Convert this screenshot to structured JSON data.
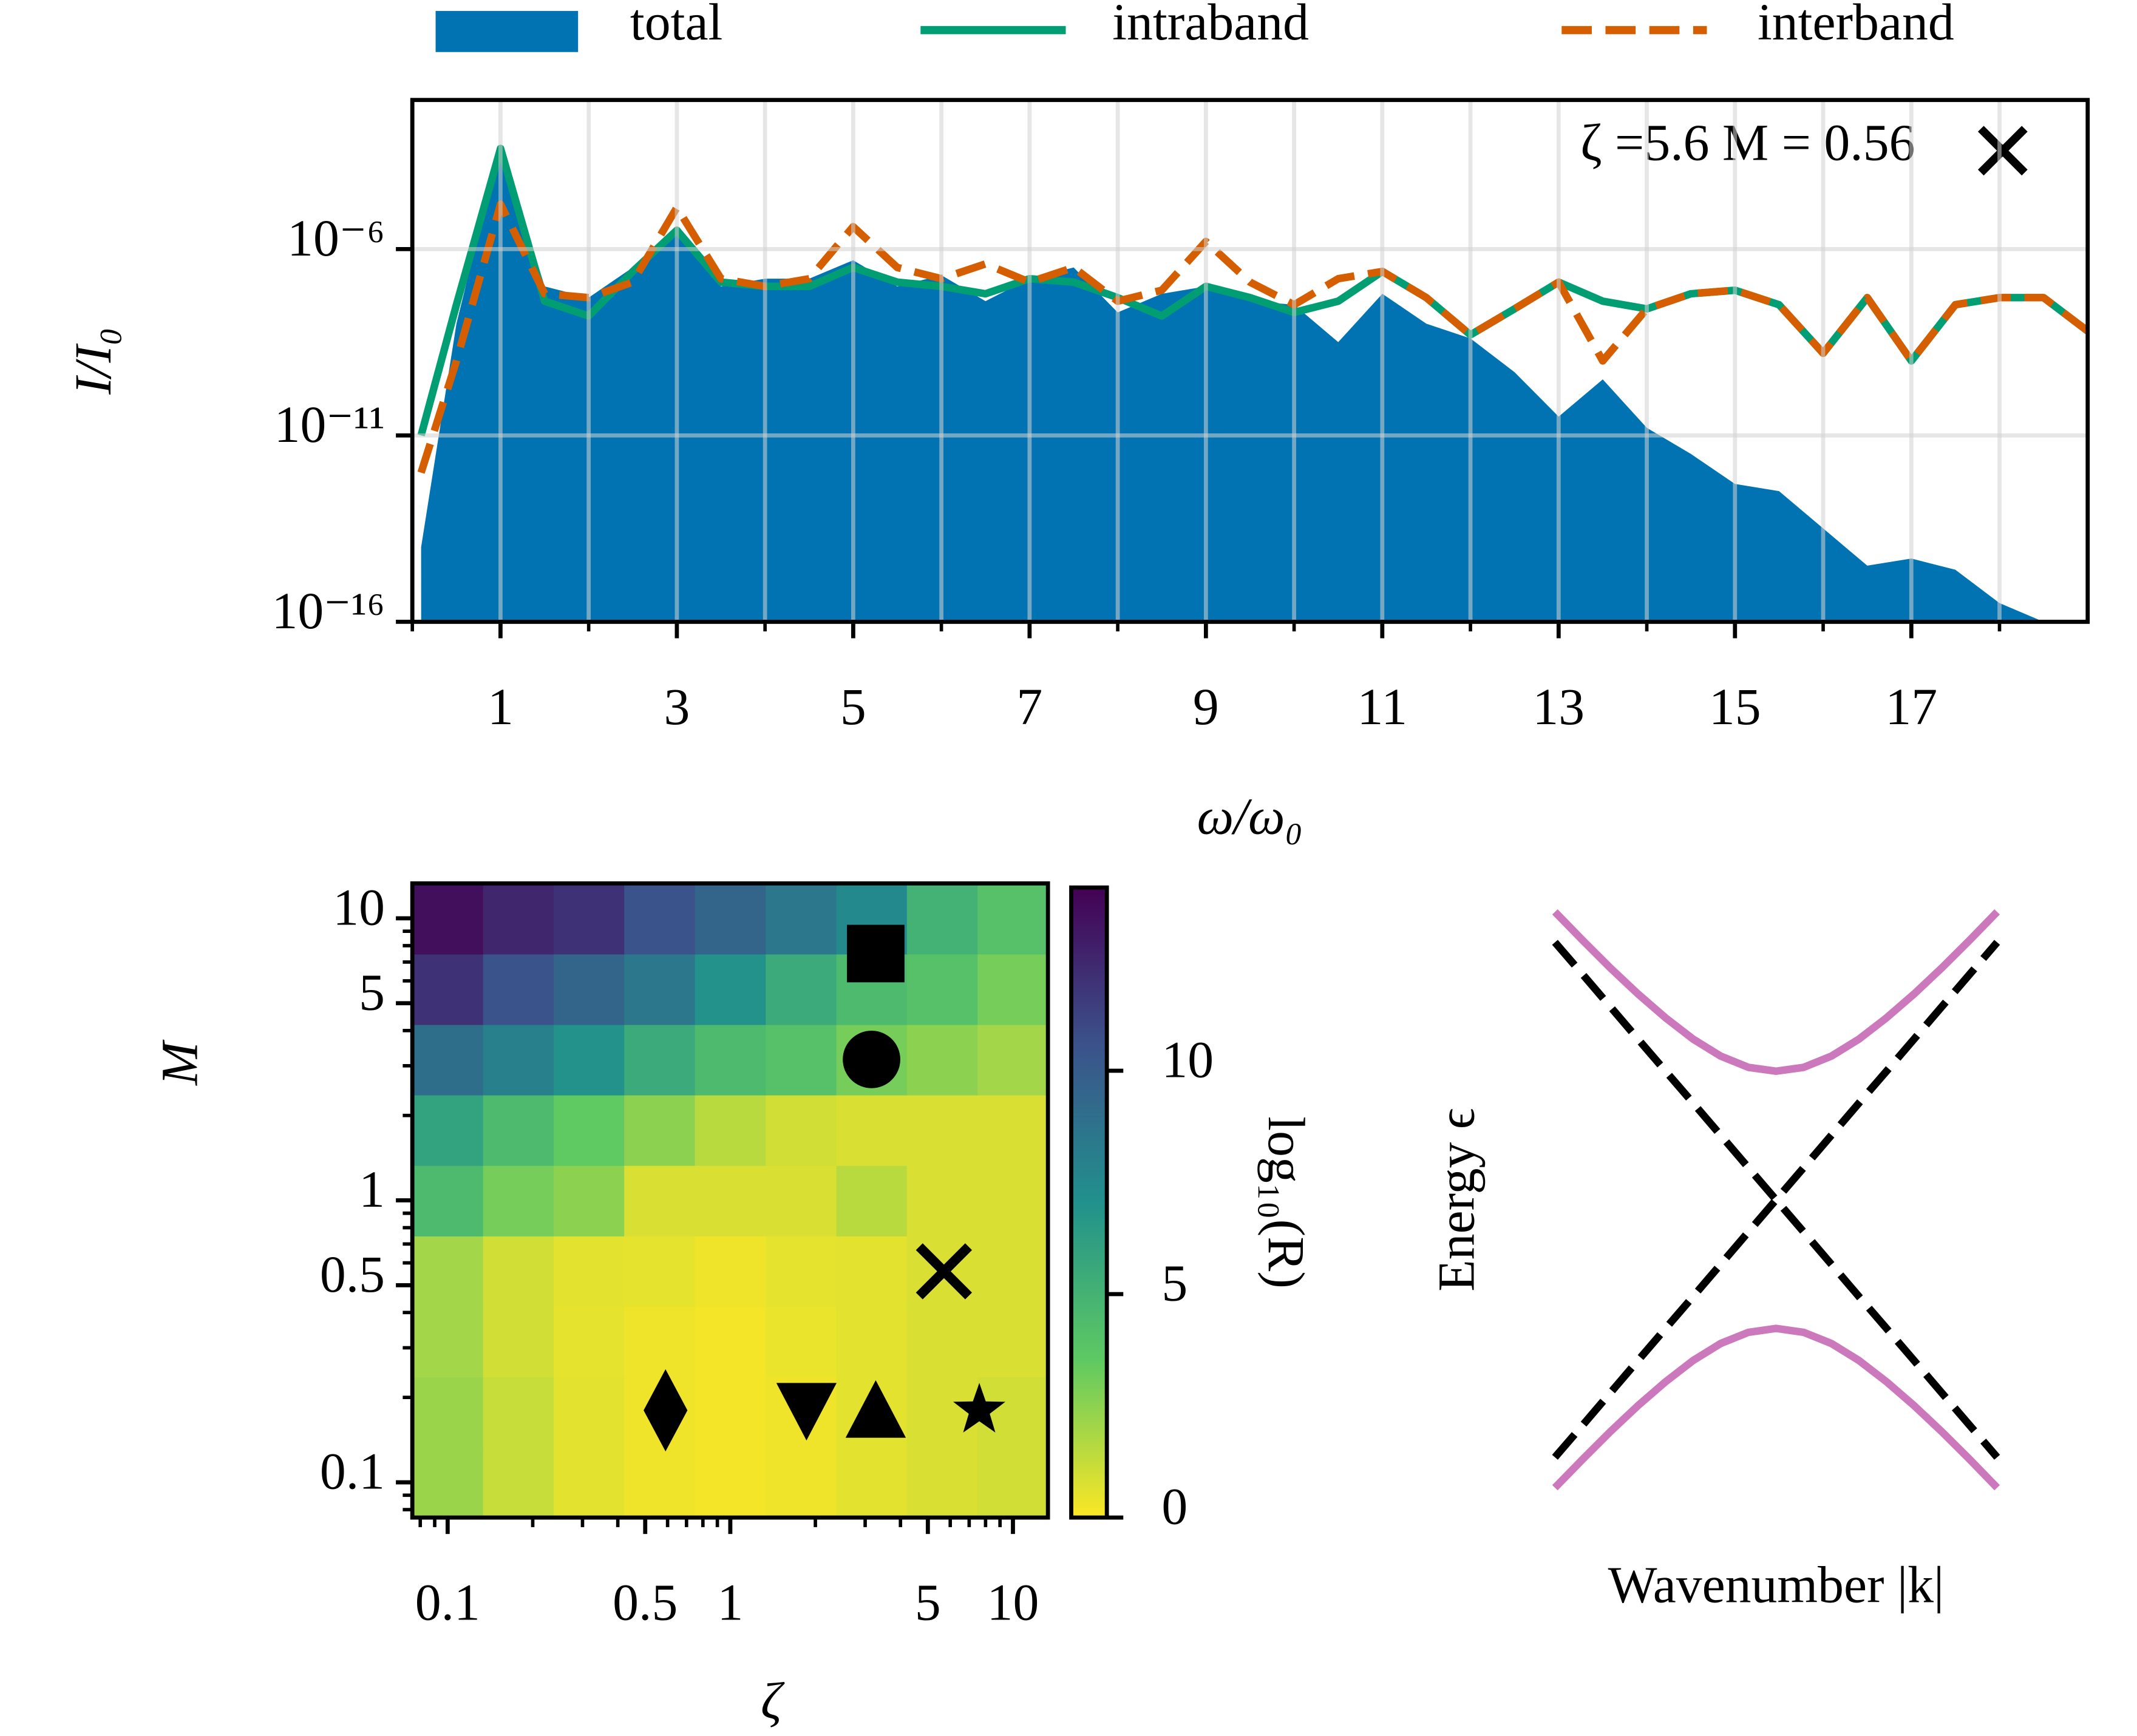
{
  "chart_data": [
    {
      "type": "line",
      "yscale": "log",
      "grid": true,
      "legend": "top",
      "xlabel": "ω/ω₀",
      "ylabel": "I/I₀",
      "annotation": "ζ =5.6 M = 0.56",
      "xlim": [
        0,
        19
      ],
      "ylim": [
        1e-16,
        0.01
      ],
      "xticks": [
        1,
        3,
        5,
        7,
        9,
        11,
        13,
        15,
        17
      ],
      "xminorticks": [
        0,
        2,
        4,
        6,
        8,
        10,
        12,
        14,
        16,
        18
      ],
      "yticks": [
        {
          "value": 1e-06,
          "label": "10⁻⁶"
        },
        {
          "value": 1e-11,
          "label": "10⁻¹¹"
        },
        {
          "value": 1e-16,
          "label": "10⁻¹⁶"
        }
      ],
      "x": [
        0.1,
        0.5,
        1,
        1.5,
        2,
        2.5,
        3,
        3.5,
        4,
        4.5,
        5,
        5.5,
        6,
        6.5,
        7,
        7.5,
        8,
        8.5,
        9,
        9.5,
        10,
        10.5,
        11,
        11.5,
        12,
        12.5,
        13,
        13.5,
        14,
        14.5,
        15,
        15.5,
        16,
        16.5,
        17,
        17.5,
        18,
        18.5,
        19
      ],
      "series": [
        {
          "name": "total",
          "color": "#0173b2",
          "fill": true,
          "values": [
            1e-14,
            1e-08,
            0.00063,
            1e-07,
            5e-08,
            3.2e-07,
            3.2e-06,
            1e-07,
            1.6e-07,
            1.6e-07,
            5e-07,
            1e-07,
            2e-07,
            4e-08,
            1.6e-07,
            3.2e-07,
            2e-08,
            6.3e-08,
            1e-07,
            4e-08,
            3.2e-08,
            3.2e-09,
            6.3e-08,
            1e-08,
            4e-09,
            5e-10,
            3.2e-11,
            3.2e-10,
            1.6e-11,
            3.2e-12,
            5e-13,
            3.2e-13,
            3.2e-14,
            3.2e-15,
            5e-15,
            2.5e-15,
            3.2e-16,
            1e-16,
            1e-16
          ]
        },
        {
          "name": "intraband",
          "color": "#029e73",
          "values": [
            1e-11,
            3.2e-08,
            0.0005,
            4e-08,
            1.6e-08,
            2.5e-07,
            3.2e-06,
            1.3e-07,
            1e-07,
            1e-07,
            3.2e-07,
            1.3e-07,
            1e-07,
            6.3e-08,
            1.6e-07,
            1.3e-07,
            5e-08,
            1.6e-08,
            1e-07,
            5e-08,
            2e-08,
            4e-08,
            2.5e-07,
            5e-08,
            5e-09,
            2.5e-08,
            1.3e-07,
            4e-08,
            2.5e-08,
            6.3e-08,
            7.9e-08,
            3.2e-08,
            1.6e-09,
            5e-08,
            1e-09,
            3.2e-08,
            5e-08,
            5e-08,
            6.3e-09
          ]
        },
        {
          "name": "interband",
          "color": "#d55e00",
          "dash": true,
          "values": [
            1e-12,
            1e-09,
            1.6e-05,
            6.3e-08,
            5e-08,
            1.3e-07,
            1.3e-05,
            1.6e-07,
            1e-07,
            1.6e-07,
            4e-06,
            3.2e-07,
            1.6e-07,
            4e-07,
            1.3e-07,
            3.2e-07,
            4e-08,
            7.9e-08,
            1.6e-06,
            1.3e-07,
            3.2e-08,
            1.6e-07,
            2.5e-07,
            5e-08,
            5e-09,
            2.5e-08,
            1.3e-07,
            1e-09,
            2.5e-08,
            6.3e-08,
            7.9e-08,
            3.2e-08,
            1.6e-09,
            5e-08,
            1e-09,
            3.2e-08,
            5e-08,
            5e-08,
            6.3e-09
          ]
        }
      ]
    },
    {
      "type": "heatmap",
      "xscale": "log",
      "yscale": "log",
      "cmap": "viridis_r",
      "xlabel": "ζ",
      "ylabel": "M",
      "xlim": [
        0.075,
        13.3
      ],
      "ylim": [
        0.075,
        13.3
      ],
      "xticks": [
        0.1,
        0.5,
        1,
        5,
        10
      ],
      "yticks": [
        0.1,
        0.5,
        1,
        5,
        10
      ],
      "xminorticks": [
        0.08,
        0.09,
        0.2,
        0.3,
        0.4,
        0.6,
        0.7,
        0.8,
        0.9,
        2,
        3,
        4,
        6,
        7,
        8,
        9
      ],
      "yminorticks": [
        0.08,
        0.09,
        0.2,
        0.3,
        0.4,
        0.6,
        0.7,
        0.8,
        0.9,
        2,
        3,
        4,
        6,
        7,
        8,
        9
      ],
      "x": [
        0.1,
        0.178,
        0.316,
        0.562,
        1,
        1.78,
        3.16,
        5.62,
        10
      ],
      "y": [
        0.1,
        0.178,
        0.316,
        0.562,
        1,
        1.78,
        3.16,
        5.62,
        10
      ],
      "z": [
        [
          2.2,
          1.2,
          0.6,
          0.3,
          0.2,
          0.3,
          0.6,
          0.8,
          1
        ],
        [
          2.2,
          1.2,
          0.6,
          0.3,
          0.2,
          0.3,
          0.6,
          0.8,
          1
        ],
        [
          2,
          1,
          0.5,
          0.3,
          0.2,
          0.4,
          0.6,
          0.8,
          0.8
        ],
        [
          2,
          1,
          0.6,
          0.5,
          0.3,
          0.5,
          0.6,
          0.8,
          0.8
        ],
        [
          4.5,
          3,
          2.5,
          0.8,
          0.8,
          0.8,
          1.5,
          0.8,
          0.8
        ],
        [
          6,
          4.5,
          3.5,
          2.5,
          1.5,
          1,
          0.8,
          0.8,
          0.8
        ],
        [
          9,
          8,
          7,
          5.5,
          4.5,
          4,
          3,
          2.5,
          2
        ],
        [
          12,
          10.5,
          9.5,
          8.5,
          7,
          5.5,
          4.5,
          4,
          3
        ],
        [
          13.5,
          12.5,
          12,
          10.5,
          9.5,
          8.5,
          7.5,
          5,
          4
        ]
      ],
      "colorbar": {
        "label": "log₁₀(R)",
        "lim": [
          0,
          14.1
        ],
        "ticks": [
          0,
          5,
          10
        ]
      },
      "points": {
        "x": [
          3.27,
          3.16,
          5.7,
          0.59,
          1.86,
          3.27,
          7.6
        ],
        "y": [
          7.5,
          3.16,
          0.56,
          0.18,
          0.18,
          0.18,
          0.18
        ],
        "markers": [
          "square",
          "circle",
          "x",
          "diamond",
          "triangle-down",
          "triangle-up",
          "star"
        ],
        "color": "#000000"
      }
    },
    {
      "type": "line",
      "frame": false,
      "xlabel": "Wavenumber |k|",
      "ylabel": "Energy ϵ",
      "xlim": [
        -1.05,
        1.05
      ],
      "ylim": [
        -1.4,
        1.4
      ],
      "x": [
        -1,
        -0.875,
        -0.75,
        -0.625,
        -0.5,
        -0.375,
        -0.25,
        -0.125,
        0,
        0.125,
        0.25,
        0.375,
        0.5,
        0.625,
        0.75,
        0.875,
        1
      ],
      "series": [
        {
          "color": "#cc78bc",
          "values": [
            1.308,
            1.179,
            1.054,
            0.936,
            0.827,
            0.73,
            0.653,
            0.602,
            0.584,
            0.602,
            0.653,
            0.73,
            0.827,
            0.936,
            1.054,
            1.179,
            1.308
          ]
        },
        {
          "color": "#cc78bc",
          "values": [
            -1.308,
            -1.179,
            -1.054,
            -0.936,
            -0.827,
            -0.73,
            -0.653,
            -0.602,
            -0.584,
            -0.602,
            -0.653,
            -0.73,
            -0.827,
            -0.936,
            -1.054,
            -1.179,
            -1.308
          ]
        },
        {
          "color": "#000000",
          "dash": true,
          "values": [
            1.17,
            1.024,
            0.878,
            0.731,
            0.585,
            0.439,
            0.293,
            0.146,
            0,
            -0.146,
            -0.293,
            -0.439,
            -0.585,
            -0.731,
            -0.878,
            -1.024,
            -1.17
          ]
        },
        {
          "color": "#000000",
          "dash": true,
          "values": [
            -1.17,
            -1.024,
            -0.878,
            -0.731,
            -0.585,
            -0.439,
            -0.293,
            -0.146,
            0,
            0.146,
            0.293,
            0.439,
            0.585,
            0.731,
            0.878,
            1.024,
            1.17
          ]
        }
      ]
    }
  ]
}
